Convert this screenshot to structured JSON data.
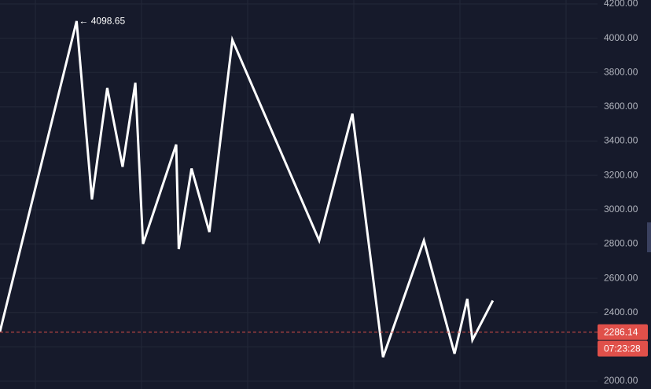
{
  "chart_data": {
    "type": "line",
    "x": [
      0,
      30,
      36,
      42,
      48,
      53,
      56,
      69,
      70,
      75,
      82,
      91,
      125,
      138,
      150,
      166,
      178,
      183,
      185,
      193
    ],
    "series": [
      {
        "color": "#ffffff",
        "values": [
          2290,
          4100,
          3060,
          3710,
          3250,
          3740,
          2800,
          3380,
          2770,
          3240,
          2870,
          3990,
          2820,
          3560,
          2140,
          2820,
          2160,
          2480,
          2240,
          2470
        ]
      }
    ],
    "xlim": [
      0,
      234
    ],
    "ylim": [
      2000,
      4200
    ],
    "yticks": [
      {
        "value": 2000,
        "label": "2000.00"
      },
      {
        "value": 2200,
        "label": "2200.00"
      },
      {
        "value": 2400,
        "label": "2400.00"
      },
      {
        "value": 2600,
        "label": "2600.00"
      },
      {
        "value": 2800,
        "label": "2800.00"
      },
      {
        "value": 3000,
        "label": "3000.00"
      },
      {
        "value": 3200,
        "label": "3200.00"
      },
      {
        "value": 3400,
        "label": "3400.00"
      },
      {
        "value": 3600,
        "label": "3600.00"
      },
      {
        "value": 3800,
        "label": "3800.00"
      },
      {
        "value": 4000,
        "label": "4000.00"
      },
      {
        "value": 4200,
        "label": "4200.00"
      }
    ],
    "grid": true,
    "annotations": [
      {
        "text": "← 4098.65",
        "x": 30,
        "y": 4098.65
      }
    ],
    "current_price": {
      "value": 2286.14,
      "label": "2286.14",
      "color": "#e0504a"
    },
    "countdown": "07:23:28"
  }
}
